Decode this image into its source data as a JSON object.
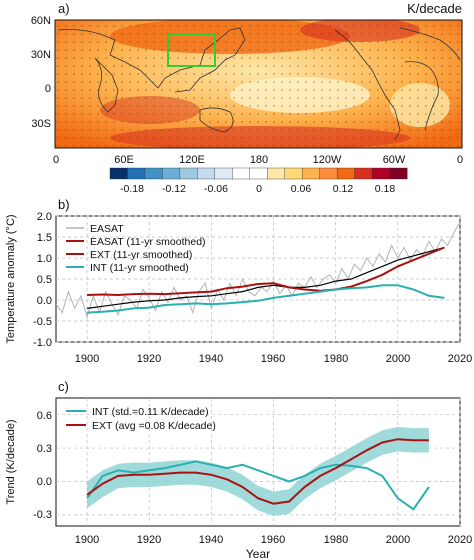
{
  "chart_data": [
    {
      "type": "heatmap",
      "panel_label": "a)",
      "units_label": "K/decade",
      "lat_tick_labels": [
        "60N",
        "30N",
        "0",
        "30S"
      ],
      "lon_tick_labels": [
        "0",
        "60E",
        "120E",
        "180",
        "120W",
        "60W",
        "0"
      ],
      "colorbar_ticks": [
        "-0.18",
        "-0.12",
        "-0.06",
        "0",
        "0.06",
        "0.12",
        "0.18"
      ],
      "colorbar_colors": [
        "#08306b",
        "#2171b5",
        "#4292c6",
        "#6baed6",
        "#9ecae1",
        "#c6dbef",
        "#deebf7",
        "#ffffff",
        "#ffffff",
        "#fee8a8",
        "#fed976",
        "#feb24c",
        "#fd8d3c",
        "#f16913",
        "#d7301f",
        "#b10026",
        "#800026"
      ],
      "box_region": {
        "lon": [
          105,
          145
        ],
        "lat": [
          25,
          50
        ]
      },
      "box_color": "#33cc33"
    },
    {
      "type": "line",
      "panel_label": "b)",
      "ylabel": "Temperature anomaly (°C)",
      "xlim": [
        1890,
        2020
      ],
      "ylim": [
        -1.0,
        2.0
      ],
      "x_tick_labels": [
        "1900",
        "1920",
        "1940",
        "1960",
        "1980",
        "2000",
        "2020"
      ],
      "y_tick_labels": [
        "-1.0",
        "-0.5",
        "0.0",
        "0.5",
        "1.0",
        "1.5",
        "2.0"
      ],
      "series": [
        {
          "name": "EASAT",
          "color": "#b3b3b3",
          "x": [
            1890,
            1892,
            1894,
            1896,
            1898,
            1900,
            1902,
            1904,
            1906,
            1908,
            1910,
            1912,
            1914,
            1916,
            1918,
            1920,
            1922,
            1924,
            1926,
            1928,
            1930,
            1932,
            1934,
            1936,
            1938,
            1940,
            1942,
            1944,
            1946,
            1948,
            1950,
            1952,
            1954,
            1956,
            1958,
            1960,
            1962,
            1964,
            1966,
            1968,
            1970,
            1972,
            1974,
            1976,
            1978,
            1980,
            1982,
            1984,
            1986,
            1988,
            1990,
            1992,
            1994,
            1996,
            1998,
            2000,
            2002,
            2004,
            2006,
            2008,
            2010,
            2012,
            2014,
            2016,
            2018,
            2020
          ],
          "y": [
            -0.1,
            -0.3,
            0.2,
            -0.2,
            0.1,
            -0.4,
            0.1,
            -0.3,
            0.2,
            -0.1,
            -0.35,
            0.1,
            0.0,
            -0.2,
            0.25,
            0.05,
            -0.25,
            0.2,
            -0.05,
            0.3,
            0.0,
            0.1,
            -0.3,
            0.2,
            0.4,
            -0.2,
            0.25,
            0.0,
            0.4,
            0.1,
            0.5,
            0.2,
            0.1,
            0.3,
            0.2,
            0.45,
            0.15,
            0.35,
            0.1,
            0.4,
            0.3,
            0.55,
            0.3,
            0.5,
            0.6,
            0.4,
            0.75,
            0.5,
            0.85,
            0.7,
            1.0,
            0.8,
            1.1,
            0.9,
            1.3,
            1.0,
            1.25,
            0.95,
            1.2,
            1.05,
            1.4,
            1.15,
            1.45,
            1.3,
            1.6,
            1.85
          ]
        },
        {
          "name": "",
          "color": "#000000",
          "x": [
            1900,
            1905,
            1910,
            1915,
            1920,
            1925,
            1930,
            1935,
            1940,
            1945,
            1950,
            1955,
            1960,
            1965,
            1970,
            1975,
            1980,
            1985,
            1990,
            1995,
            2000,
            2005,
            2010,
            2015
          ],
          "y": [
            -0.2,
            -0.15,
            -0.1,
            -0.05,
            -0.02,
            0.0,
            0.05,
            0.08,
            0.1,
            0.15,
            0.2,
            0.3,
            0.35,
            0.3,
            0.3,
            0.35,
            0.45,
            0.5,
            0.65,
            0.8,
            0.95,
            1.05,
            1.15,
            1.25
          ]
        },
        {
          "name": "EASAT (11-yr smoothed)",
          "color": "#aa1111",
          "x": [
            1900,
            1905,
            1910,
            1915,
            1920,
            1925,
            1930,
            1935,
            1940,
            1945,
            1950,
            1955,
            1960,
            1965,
            1970,
            1975,
            1980,
            1985,
            1990,
            1995,
            2000,
            2005,
            2010,
            2015
          ],
          "y": [
            0.12,
            0.13,
            0.12,
            0.14,
            0.15,
            0.14,
            0.16,
            0.18,
            0.2,
            0.28,
            0.32,
            0.38,
            0.4,
            0.3,
            0.25,
            0.22,
            0.25,
            0.32,
            0.45,
            0.6,
            0.8,
            0.95,
            1.1,
            1.25
          ]
        },
        {
          "name": "EXT (11-yr smoothed)",
          "color": "#2ab0b0",
          "x": [
            1900,
            1905,
            1910,
            1915,
            1920,
            1925,
            1930,
            1935,
            1940,
            1945,
            1950,
            1955,
            1960,
            1965,
            1970,
            1975,
            1980,
            1985,
            1990,
            1995,
            2000,
            2005,
            2010,
            2015
          ],
          "y": [
            -0.3,
            -0.28,
            -0.25,
            -0.2,
            -0.18,
            -0.12,
            -0.1,
            -0.08,
            -0.1,
            -0.08,
            -0.05,
            -0.02,
            0.05,
            0.1,
            0.15,
            0.2,
            0.25,
            0.28,
            0.3,
            0.35,
            0.35,
            0.25,
            0.1,
            0.05
          ]
        }
      ],
      "legend_labels": [
        "EASAT",
        "EASAT (11-yr smoothed)",
        "EXT (11-yr smoothed)",
        "INT (11-yr smoothed)"
      ]
    },
    {
      "type": "line",
      "panel_label": "c)",
      "xlabel": "Year",
      "ylabel": "Trend (K/decade)",
      "xlim": [
        1890,
        2020
      ],
      "ylim": [
        -0.4,
        0.75
      ],
      "x_tick_labels": [
        "1900",
        "1920",
        "1940",
        "1960",
        "1980",
        "2000",
        "2020"
      ],
      "y_tick_labels": [
        "-0.3",
        "0.0",
        "0.3",
        "0.6"
      ],
      "y_tick_values": [
        -0.3,
        0.0,
        0.3,
        0.6
      ],
      "series": [
        {
          "name": "INT (std.=0.11 K/decade)",
          "color": "#2ab0b0",
          "x": [
            1900,
            1905,
            1910,
            1915,
            1920,
            1925,
            1930,
            1935,
            1940,
            1945,
            1950,
            1955,
            1960,
            1965,
            1970,
            1975,
            1980,
            1985,
            1990,
            1995,
            2000,
            2005,
            2010
          ],
          "y": [
            -0.15,
            0.05,
            0.1,
            0.08,
            0.1,
            0.12,
            0.15,
            0.18,
            0.15,
            0.12,
            0.15,
            0.1,
            0.05,
            0.0,
            0.05,
            0.12,
            0.15,
            0.14,
            0.12,
            0.05,
            -0.15,
            -0.25,
            -0.05
          ]
        },
        {
          "name": "EXT (avg =0.08 K/decade)",
          "color": "#aa1111",
          "x": [
            1900,
            1905,
            1910,
            1915,
            1920,
            1925,
            1930,
            1935,
            1940,
            1945,
            1950,
            1955,
            1960,
            1965,
            1970,
            1975,
            1980,
            1985,
            1990,
            1995,
            2000,
            2005,
            2010
          ],
          "y": [
            -0.12,
            -0.02,
            0.05,
            0.06,
            0.06,
            0.07,
            0.08,
            0.08,
            0.06,
            0.02,
            -0.05,
            -0.15,
            -0.2,
            -0.18,
            -0.05,
            0.05,
            0.12,
            0.2,
            0.28,
            0.35,
            0.38,
            0.37,
            0.37
          ]
        }
      ],
      "band": {
        "color": "#8fd3d3",
        "x": [
          1900,
          1905,
          1910,
          1915,
          1920,
          1925,
          1930,
          1935,
          1940,
          1945,
          1950,
          1955,
          1960,
          1965,
          1970,
          1975,
          1980,
          1985,
          1990,
          1995,
          2000,
          2005,
          2010
        ],
        "upper": [
          0.0,
          0.1,
          0.16,
          0.17,
          0.17,
          0.18,
          0.19,
          0.19,
          0.17,
          0.13,
          0.06,
          -0.04,
          -0.09,
          -0.07,
          0.06,
          0.16,
          0.23,
          0.31,
          0.39,
          0.46,
          0.49,
          0.48,
          0.48
        ],
        "lower": [
          -0.24,
          -0.14,
          -0.06,
          -0.05,
          -0.05,
          -0.04,
          -0.03,
          -0.03,
          -0.05,
          -0.09,
          -0.16,
          -0.26,
          -0.31,
          -0.29,
          -0.16,
          -0.06,
          0.01,
          0.09,
          0.17,
          0.24,
          0.27,
          0.26,
          0.26
        ]
      }
    }
  ]
}
